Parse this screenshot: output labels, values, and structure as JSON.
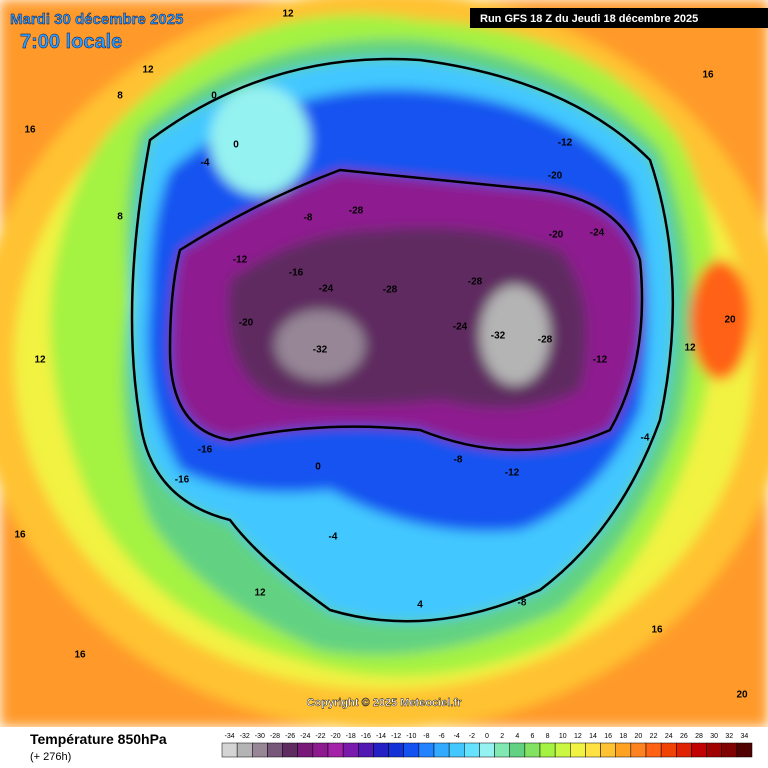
{
  "header": {
    "date": "Mardi 30 décembre 2025",
    "time": "7:00 locale",
    "run": "Run GFS 18 Z du Jeudi 18 décembre 2025"
  },
  "map": {
    "copyright": "Copyright © 2025 Meteociel.fr",
    "labels": [
      12,
      16,
      12,
      8,
      16,
      0,
      0,
      -4,
      -8,
      -12,
      -16,
      -20,
      -24,
      -28,
      -28,
      -32,
      -24,
      -28,
      -32,
      -28,
      -24,
      -20,
      -12,
      -20,
      -16,
      -16,
      -12,
      -8,
      -4,
      0,
      4,
      8,
      12,
      16,
      12,
      16,
      20,
      16,
      -8,
      -12,
      -4,
      12,
      20
    ]
  },
  "legend": {
    "title": "Température 850hPa",
    "lead": "(+ 276h)",
    "ticks": [
      -34,
      -32,
      -30,
      -28,
      -26,
      -24,
      -22,
      -20,
      -18,
      -16,
      -14,
      -12,
      -10,
      -8,
      -6,
      -4,
      -2,
      0,
      2,
      4,
      6,
      8,
      10,
      12,
      14,
      16,
      18,
      20,
      22,
      24,
      26,
      28,
      30,
      32,
      34
    ],
    "colors": [
      "#d4d4d4",
      "#b4b4b4",
      "#968696",
      "#78587a",
      "#5e2c60",
      "#781878",
      "#8e1a90",
      "#a422a8",
      "#7a1aac",
      "#5218b4",
      "#2420c4",
      "#1232d8",
      "#1252f0",
      "#2282ff",
      "#32aaff",
      "#42c8ff",
      "#64e2ff",
      "#94f2f0",
      "#82e8b2",
      "#62d282",
      "#84e262",
      "#a4f242",
      "#caf842",
      "#f2f242",
      "#ffe242",
      "#ffc232",
      "#ffa222",
      "#ff8222",
      "#ff6212",
      "#f04202",
      "#e02202",
      "#c00202",
      "#a00202",
      "#800202",
      "#500202"
    ]
  }
}
